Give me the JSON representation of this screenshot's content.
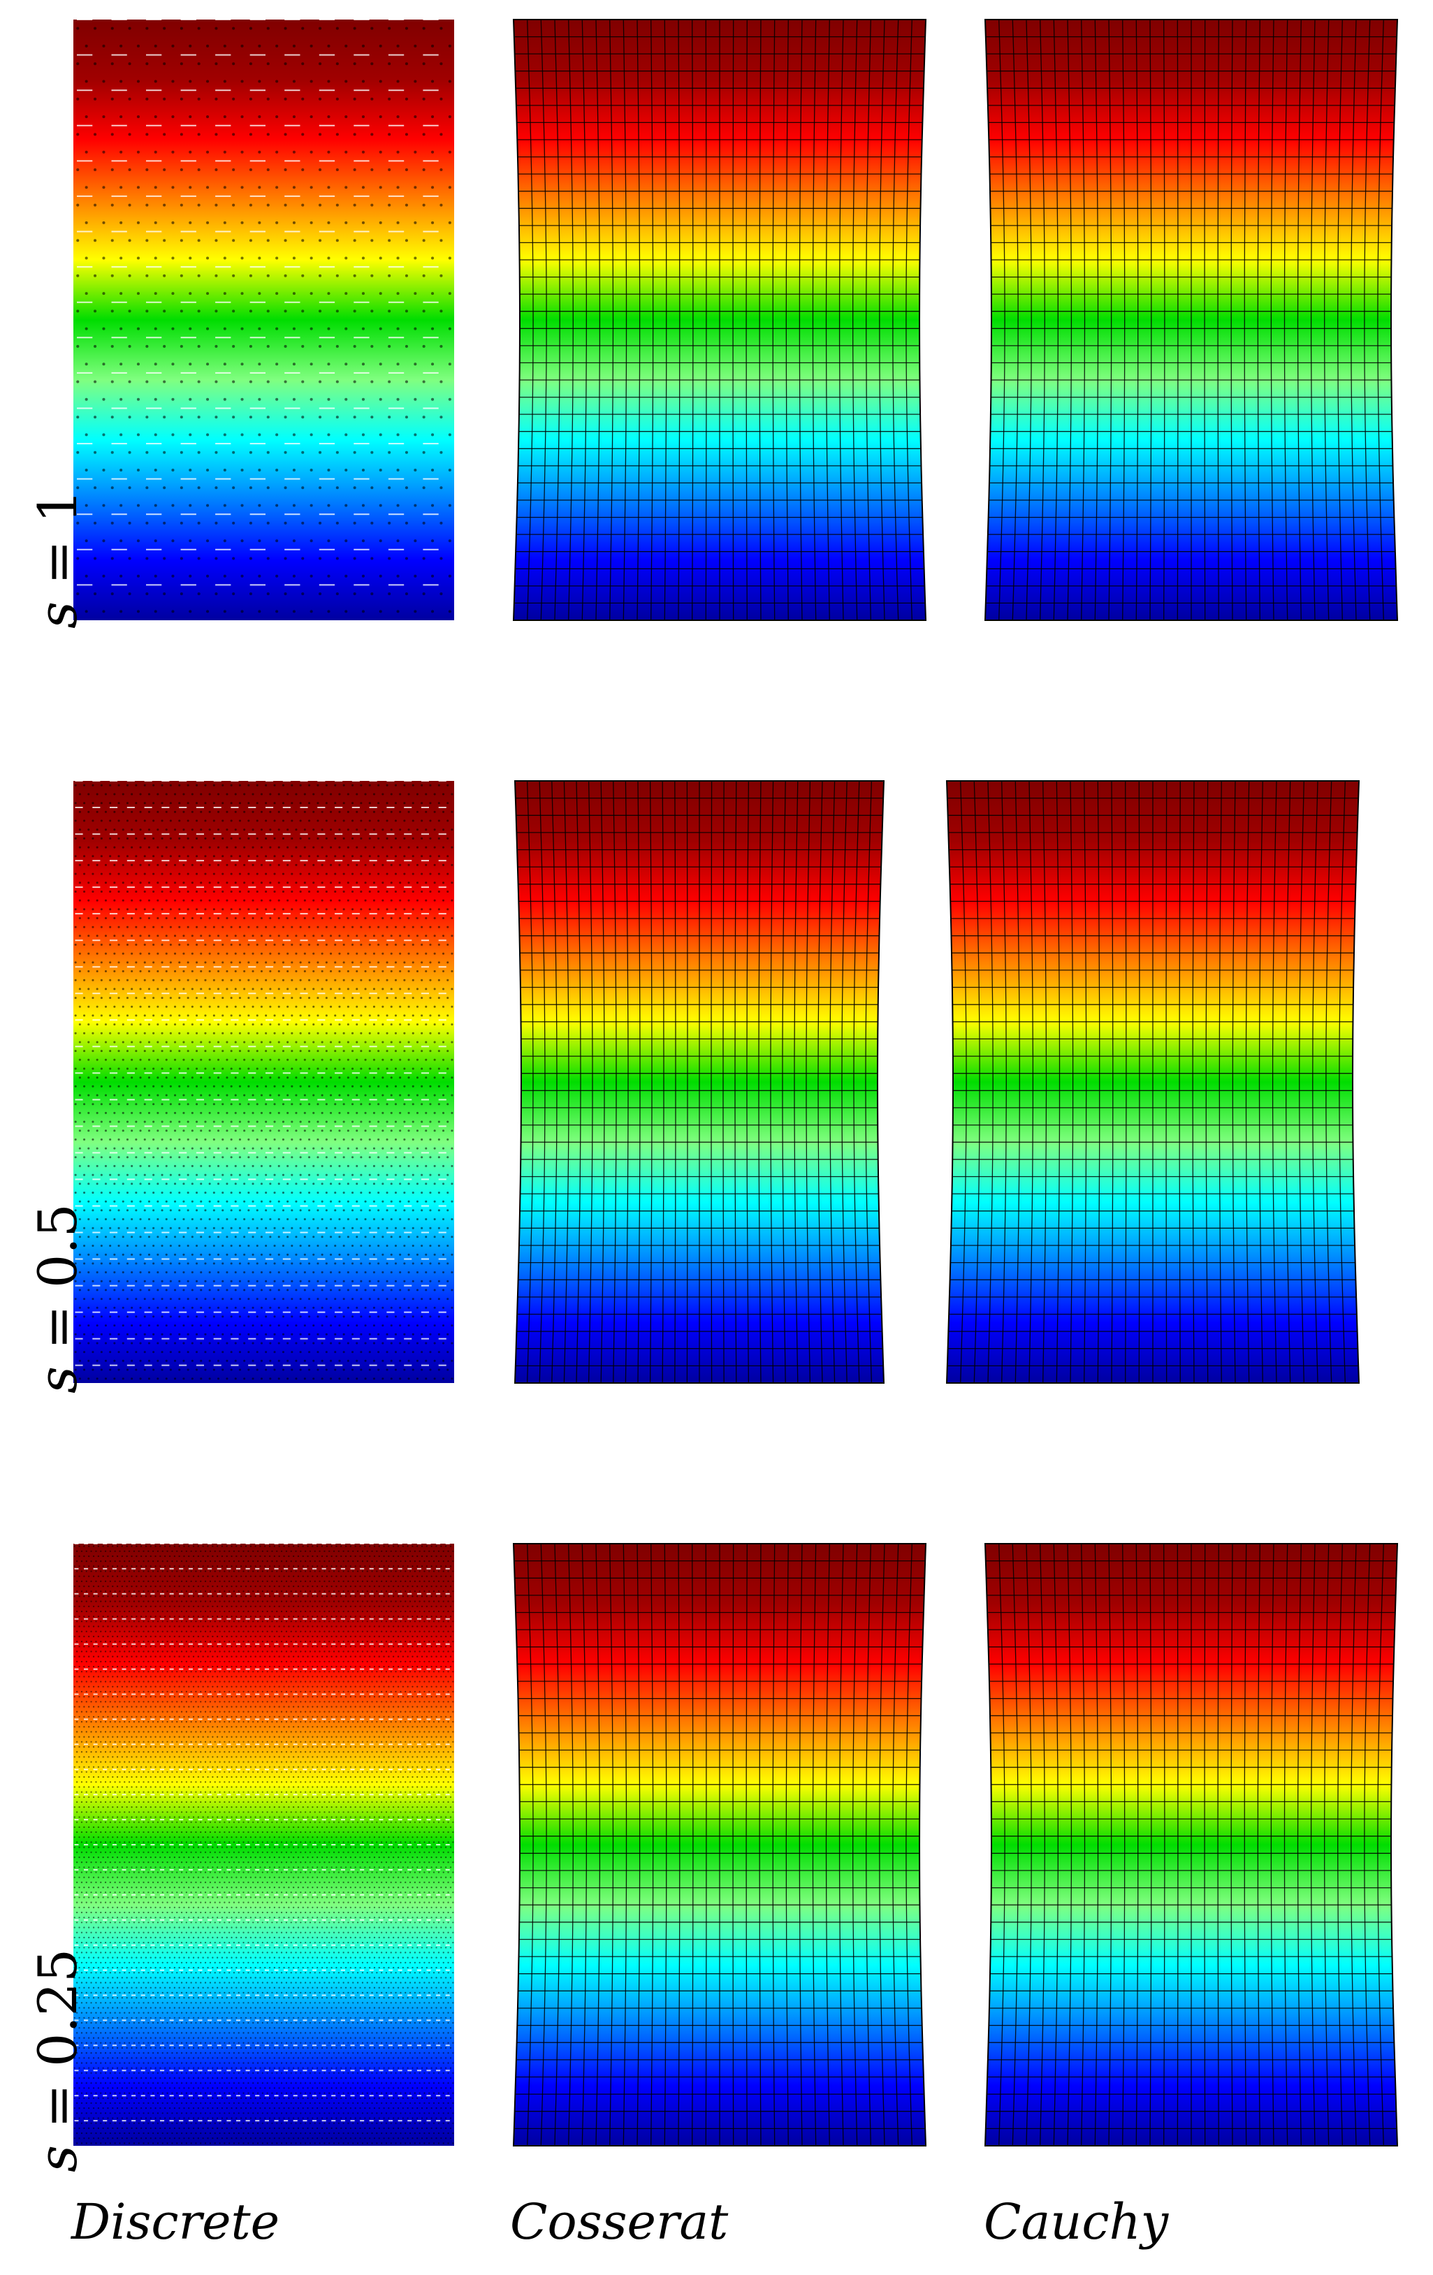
{
  "columns": [
    "Discrete",
    "Cosserat",
    "Cauchy"
  ],
  "rows": [
    {
      "var": "s",
      "op": "=",
      "value": "1"
    },
    {
      "var": "s",
      "op": "=",
      "value": "0.5"
    },
    {
      "var": "s",
      "op": "=",
      "value": "0.25"
    }
  ],
  "colormap": [
    "#0000a0",
    "#0000ff",
    "#0080ff",
    "#00ffff",
    "#80ff80",
    "#00dd00",
    "#ffff00",
    "#ff8000",
    "#ff0000",
    "#a00000",
    "#800000"
  ]
}
